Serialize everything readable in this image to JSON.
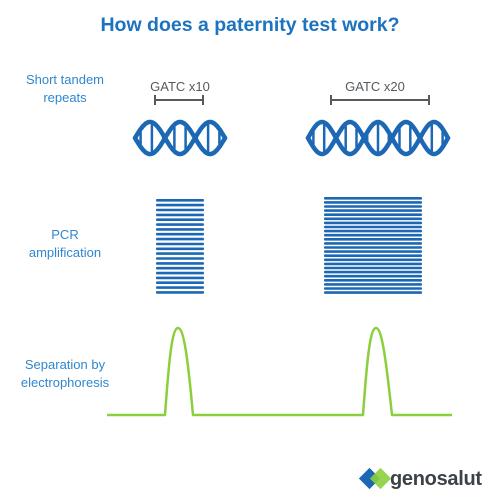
{
  "title": "How does a paternity test work?",
  "rows": [
    {
      "label": "Short tandem\nrepeats"
    },
    {
      "label": "PCR\namplification"
    },
    {
      "label": "Separation by\nelectrophoresis"
    }
  ],
  "repeats": [
    {
      "label": "GATC x10",
      "bands": 20
    },
    {
      "label": "GATC x20",
      "bands": 24
    }
  ],
  "brand": "genosalut",
  "colors": {
    "title": "#1c73bf",
    "label": "#2f87cf",
    "dna": "#1c68b4",
    "peak": "#8ccf3c"
  }
}
